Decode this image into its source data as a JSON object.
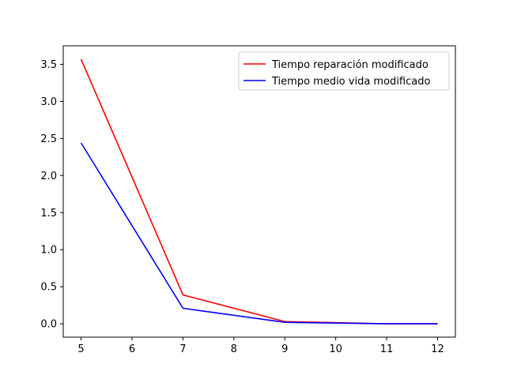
{
  "chart_data": {
    "type": "line",
    "title": "",
    "xlabel": "",
    "ylabel": "",
    "x": [
      5,
      7,
      9,
      11,
      12
    ],
    "xlim": [
      4.65,
      12.35
    ],
    "ylim": [
      -0.18,
      3.75
    ],
    "xticks": [
      5,
      6,
      7,
      8,
      9,
      10,
      11,
      12
    ],
    "yticks": [
      0.0,
      0.5,
      1.0,
      1.5,
      2.0,
      2.5,
      3.0,
      3.5
    ],
    "ytick_labels": [
      "0.0",
      "0.5",
      "1.0",
      "1.5",
      "2.0",
      "2.5",
      "3.0",
      "3.5"
    ],
    "grid": false,
    "legend_position": "top-right",
    "series": [
      {
        "name": "Tiempo reparación modificado",
        "color": "#ff0000",
        "values": [
          3.57,
          0.39,
          0.03,
          0.0,
          0.0
        ]
      },
      {
        "name": "Tiempo medio vida modificado",
        "color": "#0000ff",
        "values": [
          2.44,
          0.21,
          0.02,
          0.0,
          0.0
        ]
      }
    ]
  }
}
